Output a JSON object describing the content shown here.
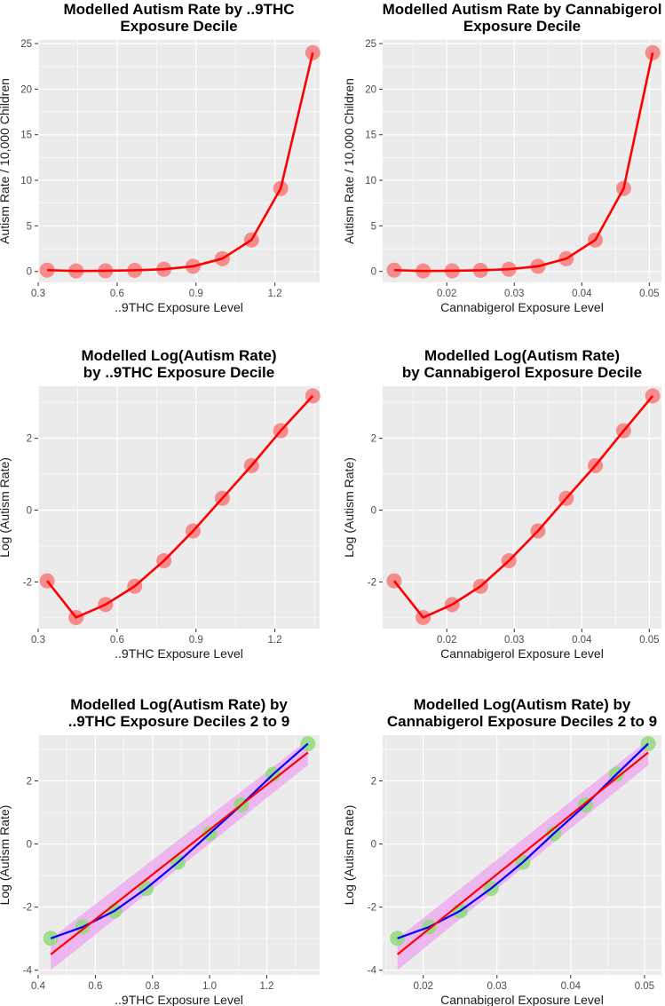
{
  "colors": {
    "panel_bg": "#ebebeb",
    "grid": "#ffffff",
    "tick": "#333333",
    "fit_line": "#ff0000",
    "point_red": "#f87a7a",
    "point_green": "#8fdb7b",
    "regression_line": "#0000ff",
    "ribbon": "#f0a0f0"
  },
  "chart_data": [
    {
      "type": "scatter",
      "title": [
        "Modelled Autism Rate by ..9THC",
        "Exposure Decile"
      ],
      "xlabel": "..9THC Exposure Level",
      "ylabel": "Autism Rate / 10,000 Children",
      "xlim": [
        0.3,
        1.37
      ],
      "ylim": [
        -1.2,
        25.4
      ],
      "xticks": [
        0.3,
        0.6,
        0.9,
        1.2
      ],
      "xtick_labels": [
        "0.3",
        "0.6",
        "0.9",
        "1.2"
      ],
      "yticks": [
        0,
        5,
        10,
        15,
        20,
        25
      ],
      "ytick_labels": [
        "0",
        "5",
        "10",
        "15",
        "20",
        "25"
      ],
      "point_style": "red",
      "x": [
        0.334,
        0.444,
        0.556,
        0.667,
        0.778,
        0.889,
        1.0,
        1.111,
        1.222,
        1.344
      ],
      "y": [
        0.14,
        0.05,
        0.07,
        0.12,
        0.24,
        0.56,
        1.4,
        3.45,
        9.1,
        24.0
      ],
      "curve": {
        "x": [
          0.334,
          0.444,
          0.556,
          0.667,
          0.778,
          0.889,
          1.0,
          1.111,
          1.222,
          1.344
        ],
        "y": [
          0.14,
          0.05,
          0.07,
          0.12,
          0.24,
          0.56,
          1.4,
          3.45,
          9.1,
          24.0
        ]
      }
    },
    {
      "type": "scatter",
      "title": [
        "Modelled Autism Rate by Cannabigerol",
        "Exposure Decile"
      ],
      "xlabel": "Cannabigerol Exposure Level",
      "ylabel": "Autism Rate / 10,000 Children",
      "xlim": [
        0.0105,
        0.0518
      ],
      "ylim": [
        -1.2,
        25.4
      ],
      "xticks": [
        0.02,
        0.03,
        0.04,
        0.05
      ],
      "xtick_labels": [
        "0.02",
        "0.03",
        "0.04",
        "0.05"
      ],
      "yticks": [
        0,
        5,
        10,
        15,
        20,
        25
      ],
      "ytick_labels": [
        "0",
        "5",
        "10",
        "15",
        "20",
        "25"
      ],
      "point_style": "red",
      "x": [
        0.0122,
        0.0165,
        0.0208,
        0.025,
        0.0292,
        0.0335,
        0.0377,
        0.042,
        0.0462,
        0.0505
      ],
      "y": [
        0.14,
        0.05,
        0.07,
        0.12,
        0.24,
        0.56,
        1.4,
        3.45,
        9.1,
        24.0
      ],
      "curve": {
        "x": [
          0.0122,
          0.0165,
          0.0208,
          0.025,
          0.0292,
          0.0335,
          0.0377,
          0.042,
          0.0462,
          0.0505
        ],
        "y": [
          0.14,
          0.05,
          0.07,
          0.12,
          0.24,
          0.56,
          1.4,
          3.45,
          9.1,
          24.0
        ]
      }
    },
    {
      "type": "scatter",
      "title": [
        "Modelled Log(Autism Rate)",
        "by ..9THC Exposure Decile"
      ],
      "xlabel": "..9THC Exposure Level",
      "ylabel": "Log (Autism Rate)",
      "xlim": [
        0.3,
        1.37
      ],
      "ylim": [
        -3.3,
        3.45
      ],
      "xticks": [
        0.3,
        0.6,
        0.9,
        1.2
      ],
      "xtick_labels": [
        "0.3",
        "0.6",
        "0.9",
        "1.2"
      ],
      "yticks": [
        -2,
        0,
        2
      ],
      "ytick_labels": [
        "-2",
        "0",
        "2"
      ],
      "point_style": "red",
      "x": [
        0.334,
        0.444,
        0.556,
        0.667,
        0.778,
        0.889,
        1.0,
        1.111,
        1.222,
        1.344
      ],
      "y": [
        -1.97,
        -2.99,
        -2.63,
        -2.12,
        -1.41,
        -0.58,
        0.33,
        1.24,
        2.21,
        3.18
      ],
      "curve": {
        "x": [
          0.334,
          0.444,
          0.556,
          0.667,
          0.778,
          0.889,
          1.0,
          1.111,
          1.222,
          1.344
        ],
        "y": [
          -1.97,
          -2.99,
          -2.63,
          -2.12,
          -1.41,
          -0.58,
          0.33,
          1.24,
          2.21,
          3.18
        ]
      }
    },
    {
      "type": "scatter",
      "title": [
        "Modelled Log(Autism Rate)",
        "by Cannabigerol Exposure Decile"
      ],
      "xlabel": "Cannabigerol Exposure Level",
      "ylabel": "Log (Autism Rate)",
      "xlim": [
        0.0105,
        0.0518
      ],
      "ylim": [
        -3.3,
        3.45
      ],
      "xticks": [
        0.02,
        0.03,
        0.04,
        0.05
      ],
      "xtick_labels": [
        "0.02",
        "0.03",
        "0.04",
        "0.05"
      ],
      "yticks": [
        -2,
        0,
        2
      ],
      "ytick_labels": [
        "-2",
        "0",
        "2"
      ],
      "point_style": "red",
      "x": [
        0.0122,
        0.0165,
        0.0208,
        0.025,
        0.0292,
        0.0335,
        0.0377,
        0.042,
        0.0462,
        0.0505
      ],
      "y": [
        -1.97,
        -2.99,
        -2.63,
        -2.12,
        -1.41,
        -0.58,
        0.33,
        1.24,
        2.21,
        3.18
      ],
      "curve": {
        "x": [
          0.0122,
          0.0165,
          0.0208,
          0.025,
          0.0292,
          0.0335,
          0.0377,
          0.042,
          0.0462,
          0.0505
        ],
        "y": [
          -1.97,
          -2.99,
          -2.63,
          -2.12,
          -1.41,
          -0.58,
          0.33,
          1.24,
          2.21,
          3.18
        ]
      }
    },
    {
      "type": "scatter",
      "title": [
        "Modelled Log(Autism Rate) by",
        "..9THC Exposure Deciles 2 to 9"
      ],
      "xlabel": "..9THC Exposure Level",
      "ylabel": "Log (Autism Rate)",
      "xlim": [
        0.4,
        1.385
      ],
      "ylim": [
        -4.15,
        3.45
      ],
      "xticks": [
        0.4,
        0.6,
        0.8,
        1.0,
        1.2
      ],
      "xtick_labels": [
        "0.4",
        "0.6",
        "0.8",
        "1.0",
        "1.2"
      ],
      "yticks": [
        -4,
        -2,
        0,
        2
      ],
      "ytick_labels": [
        "-4",
        "-2",
        "0",
        "2"
      ],
      "point_style": "green",
      "x": [
        0.444,
        0.556,
        0.667,
        0.778,
        0.889,
        1.0,
        1.111,
        1.222,
        1.344
      ],
      "y": [
        -2.99,
        -2.63,
        -2.12,
        -1.41,
        -0.58,
        0.33,
        1.24,
        2.21,
        3.18
      ],
      "curve": {
        "x": [
          0.444,
          0.556,
          0.667,
          0.778,
          0.889,
          1.0,
          1.111,
          1.222,
          1.344
        ],
        "y": [
          -2.99,
          -2.63,
          -2.12,
          -1.41,
          -0.58,
          0.33,
          1.24,
          2.21,
          3.18
        ]
      },
      "regression": {
        "x": [
          0.444,
          1.344
        ],
        "y": [
          -3.5,
          2.9
        ]
      },
      "ribbon": {
        "x": [
          0.444,
          1.344
        ],
        "upper": [
          -3.0,
          3.3
        ],
        "lower": [
          -4.0,
          2.5
        ]
      }
    },
    {
      "type": "scatter",
      "title": [
        "Modelled Log(Autism Rate) by",
        "Cannabigerol Exposure Deciles 2 to 9"
      ],
      "xlabel": "Cannabigerol Exposure Level",
      "ylabel": "Log (Autism Rate)",
      "xlim": [
        0.0145,
        0.0523
      ],
      "ylim": [
        -4.15,
        3.45
      ],
      "xticks": [
        0.02,
        0.03,
        0.04,
        0.05
      ],
      "xtick_labels": [
        "0.02",
        "0.03",
        "0.04",
        "0.05"
      ],
      "yticks": [
        -4,
        -2,
        0,
        2
      ],
      "ytick_labels": [
        "-4",
        "-2",
        "0",
        "2"
      ],
      "point_style": "green",
      "x": [
        0.0165,
        0.0208,
        0.025,
        0.0292,
        0.0335,
        0.0377,
        0.042,
        0.0462,
        0.0505
      ],
      "y": [
        -2.99,
        -2.63,
        -2.12,
        -1.41,
        -0.58,
        0.33,
        1.24,
        2.21,
        3.18
      ],
      "curve": {
        "x": [
          0.0165,
          0.0208,
          0.025,
          0.0292,
          0.0335,
          0.0377,
          0.042,
          0.0462,
          0.0505
        ],
        "y": [
          -2.99,
          -2.63,
          -2.12,
          -1.41,
          -0.58,
          0.33,
          1.24,
          2.21,
          3.18
        ]
      },
      "regression": {
        "x": [
          0.0165,
          0.0505
        ],
        "y": [
          -3.5,
          2.9
        ]
      },
      "ribbon": {
        "x": [
          0.0165,
          0.0505
        ],
        "upper": [
          -3.0,
          3.3
        ],
        "lower": [
          -4.0,
          2.5
        ]
      }
    }
  ]
}
